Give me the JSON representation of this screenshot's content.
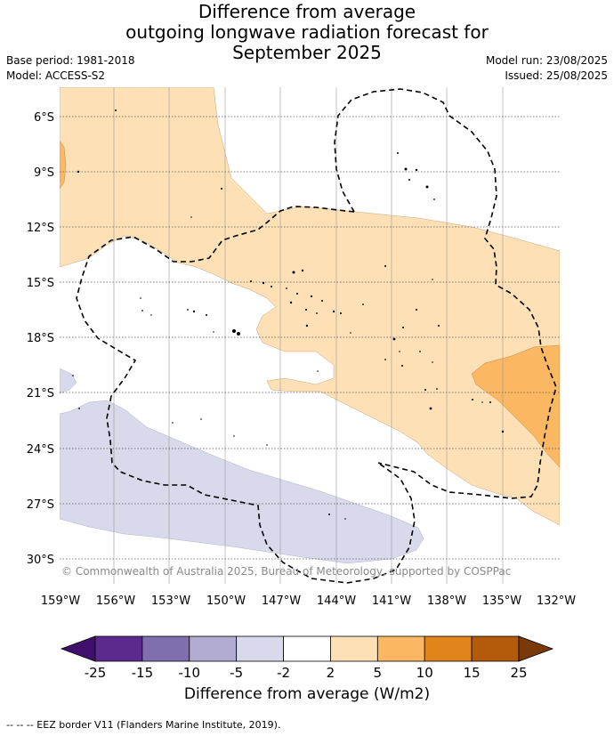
{
  "title": {
    "line1": "Difference from average",
    "line2": "outgoing longwave radiation forecast for",
    "line3": "September 2025"
  },
  "meta": {
    "base_period": "Base period: 1981-2018",
    "model": "Model: ACCESS-S2",
    "model_run": "Model run: 23/08/2025",
    "issued": "Issued: 25/08/2025"
  },
  "map": {
    "lat_labels": [
      "6°S",
      "9°S",
      "12°S",
      "15°S",
      "18°S",
      "21°S",
      "24°S",
      "27°S",
      "30°S"
    ],
    "lon_labels": [
      "159°W",
      "156°W",
      "153°W",
      "150°W",
      "147°W",
      "144°W",
      "141°W",
      "138°W",
      "135°W",
      "132°W"
    ],
    "copyright": "© Commonwealth of Australia 2025, Bureau of Meteorology, supported by COSPPac"
  },
  "colorbar": {
    "ticks": [
      "-25",
      "-15",
      "-10",
      "-5",
      "-2",
      "2",
      "5",
      "10",
      "15",
      "25"
    ],
    "colors": [
      "#3f0f6b",
      "#5c2a8c",
      "#7f6fae",
      "#b2acd3",
      "#d8d9ea",
      "#ffffff",
      "#fde0b5",
      "#fbb762",
      "#e1841b",
      "#b35a0b",
      "#7a3a08"
    ],
    "label": "Difference from average (W/m2)"
  },
  "footnote": "--  --  -- EEZ border V11 (Flanders Marine Institute, 2019)."
}
